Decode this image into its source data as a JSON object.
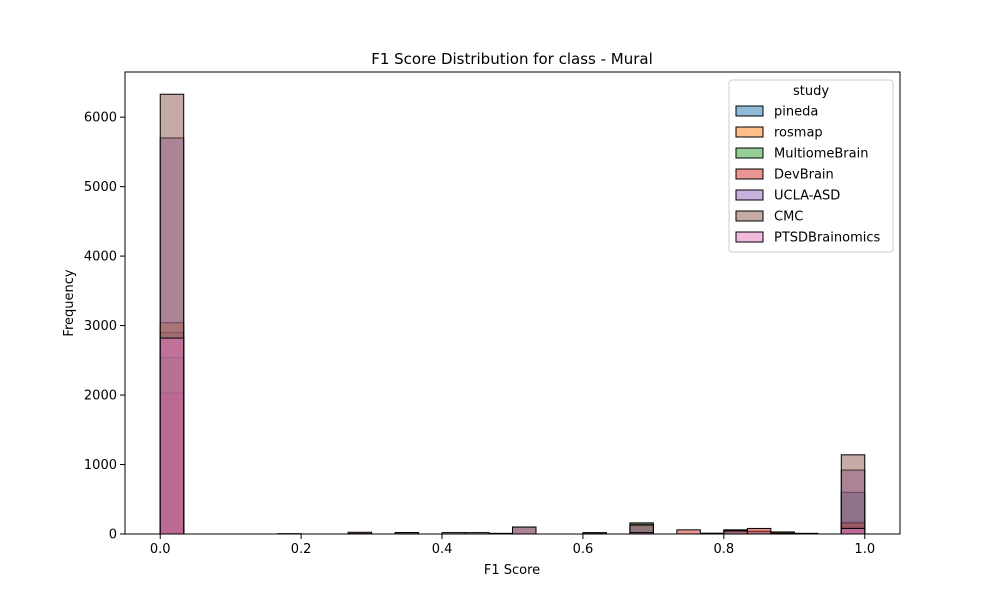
{
  "chart_data": {
    "type": "histogram",
    "title": "F1 Score Distribution for class - Mural",
    "xlabel": "F1 Score",
    "ylabel": "Frequency",
    "xlim": [
      -0.05,
      1.05
    ],
    "ylim": [
      0,
      6650
    ],
    "xticks": [
      0.0,
      0.2,
      0.4,
      0.6,
      0.8,
      1.0
    ],
    "xtick_labels": [
      "0.0",
      "0.2",
      "0.4",
      "0.6",
      "0.8",
      "1.0"
    ],
    "yticks": [
      0,
      1000,
      2000,
      3000,
      4000,
      5000,
      6000
    ],
    "ytick_labels": [
      "0",
      "1000",
      "2000",
      "3000",
      "4000",
      "5000",
      "6000"
    ],
    "bin_count": 30,
    "bin_range": [
      0,
      1
    ],
    "legend": {
      "title": "study",
      "position": "top-right"
    },
    "series": [
      {
        "name": "pineda",
        "color": "#1f77b4",
        "bins": [
          [
            0,
            2900
          ],
          [
            23,
            10
          ],
          [
            25,
            40
          ],
          [
            26,
            20
          ],
          [
            29,
            600
          ]
        ]
      },
      {
        "name": "rosmap",
        "color": "#ff7f0e",
        "bins": [
          [
            0,
            3040
          ],
          [
            26,
            30
          ],
          [
            29,
            170
          ]
        ]
      },
      {
        "name": "MultiomeBrain",
        "color": "#2ca02c",
        "bins": [
          [
            0,
            2540
          ],
          [
            8,
            8
          ],
          [
            14,
            10
          ],
          [
            18,
            10
          ],
          [
            20,
            160
          ],
          [
            23,
            10
          ],
          [
            26,
            10
          ],
          [
            29,
            100
          ]
        ]
      },
      {
        "name": "DevBrain",
        "color": "#d62728",
        "bins": [
          [
            0,
            2030
          ],
          [
            22,
            60
          ],
          [
            24,
            60
          ],
          [
            25,
            80
          ],
          [
            29,
            150
          ]
        ]
      },
      {
        "name": "UCLA-ASD",
        "color": "#9467bd",
        "bins": [
          [
            0,
            5700
          ],
          [
            10,
            20
          ],
          [
            15,
            100
          ],
          [
            20,
            120
          ],
          [
            24,
            40
          ],
          [
            29,
            920
          ]
        ]
      },
      {
        "name": "CMC",
        "color": "#8c564b",
        "bins": [
          [
            0,
            6330
          ],
          [
            5,
            5
          ],
          [
            8,
            25
          ],
          [
            10,
            20
          ],
          [
            12,
            20
          ],
          [
            13,
            20
          ],
          [
            15,
            100
          ],
          [
            18,
            20
          ],
          [
            20,
            140
          ],
          [
            24,
            50
          ],
          [
            27,
            10
          ],
          [
            29,
            1140
          ]
        ]
      },
      {
        "name": "PTSDBrainomics",
        "color": "#e377c2",
        "bins": [
          [
            0,
            2820
          ],
          [
            20,
            20
          ],
          [
            29,
            80
          ]
        ]
      }
    ]
  }
}
